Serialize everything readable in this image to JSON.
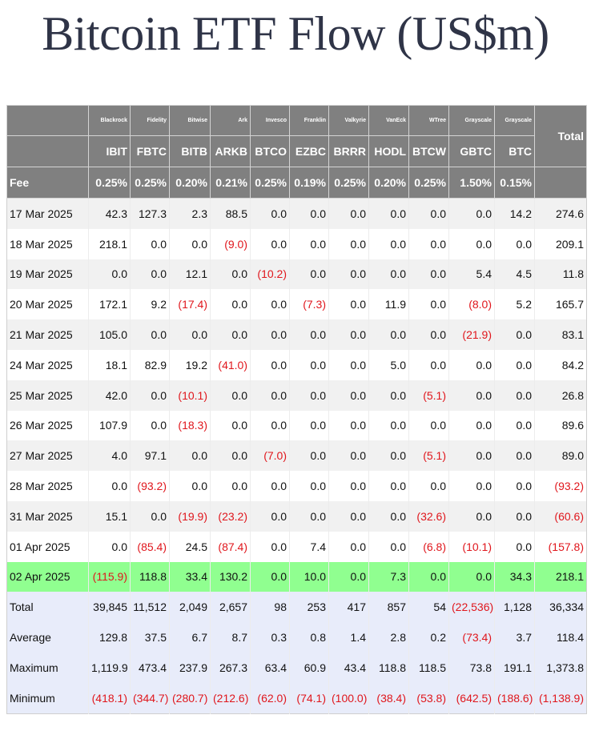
{
  "title": "Bitcoin ETF Flow (US$m)",
  "header": {
    "issuers": [
      "Blackrock",
      "Fidelity",
      "Bitwise",
      "Ark",
      "Invesco",
      "Franklin",
      "Valkyrie",
      "VanEck",
      "WTree",
      "Grayscale",
      "Grayscale"
    ],
    "tickers": [
      "IBIT",
      "FBTC",
      "BITB",
      "ARKB",
      "BTCO",
      "EZBC",
      "BRRR",
      "HODL",
      "BTCW",
      "GBTC",
      "BTC"
    ],
    "fee_label": "Fee",
    "fees": [
      "0.25%",
      "0.25%",
      "0.20%",
      "0.21%",
      "0.25%",
      "0.19%",
      "0.25%",
      "0.20%",
      "0.25%",
      "1.50%",
      "0.15%"
    ],
    "total_label": "Total"
  },
  "rows": [
    {
      "date": "17 Mar 2025",
      "values": [
        "42.3",
        "127.3",
        "2.3",
        "88.5",
        "0.0",
        "0.0",
        "0.0",
        "0.0",
        "0.0",
        "0.0",
        "14.2"
      ],
      "total": "274.6"
    },
    {
      "date": "18 Mar 2025",
      "values": [
        "218.1",
        "0.0",
        "0.0",
        "(9.0)",
        "0.0",
        "0.0",
        "0.0",
        "0.0",
        "0.0",
        "0.0",
        "0.0"
      ],
      "total": "209.1"
    },
    {
      "date": "19 Mar 2025",
      "values": [
        "0.0",
        "0.0",
        "12.1",
        "0.0",
        "(10.2)",
        "0.0",
        "0.0",
        "0.0",
        "0.0",
        "5.4",
        "4.5"
      ],
      "total": "11.8"
    },
    {
      "date": "20 Mar 2025",
      "values": [
        "172.1",
        "9.2",
        "(17.4)",
        "0.0",
        "0.0",
        "(7.3)",
        "0.0",
        "11.9",
        "0.0",
        "(8.0)",
        "5.2"
      ],
      "total": "165.7"
    },
    {
      "date": "21 Mar 2025",
      "values": [
        "105.0",
        "0.0",
        "0.0",
        "0.0",
        "0.0",
        "0.0",
        "0.0",
        "0.0",
        "0.0",
        "(21.9)",
        "0.0"
      ],
      "total": "83.1"
    },
    {
      "date": "24 Mar 2025",
      "values": [
        "18.1",
        "82.9",
        "19.2",
        "(41.0)",
        "0.0",
        "0.0",
        "0.0",
        "5.0",
        "0.0",
        "0.0",
        "0.0"
      ],
      "total": "84.2"
    },
    {
      "date": "25 Mar 2025",
      "values": [
        "42.0",
        "0.0",
        "(10.1)",
        "0.0",
        "0.0",
        "0.0",
        "0.0",
        "0.0",
        "(5.1)",
        "0.0",
        "0.0"
      ],
      "total": "26.8"
    },
    {
      "date": "26 Mar 2025",
      "values": [
        "107.9",
        "0.0",
        "(18.3)",
        "0.0",
        "0.0",
        "0.0",
        "0.0",
        "0.0",
        "0.0",
        "0.0",
        "0.0"
      ],
      "total": "89.6"
    },
    {
      "date": "27 Mar 2025",
      "values": [
        "4.0",
        "97.1",
        "0.0",
        "0.0",
        "(7.0)",
        "0.0",
        "0.0",
        "0.0",
        "(5.1)",
        "0.0",
        "0.0"
      ],
      "total": "89.0"
    },
    {
      "date": "28 Mar 2025",
      "values": [
        "0.0",
        "(93.2)",
        "0.0",
        "0.0",
        "0.0",
        "0.0",
        "0.0",
        "0.0",
        "0.0",
        "0.0",
        "0.0"
      ],
      "total": "(93.2)"
    },
    {
      "date": "31 Mar 2025",
      "values": [
        "15.1",
        "0.0",
        "(19.9)",
        "(23.2)",
        "0.0",
        "0.0",
        "0.0",
        "0.0",
        "(32.6)",
        "0.0",
        "0.0"
      ],
      "total": "(60.6)"
    },
    {
      "date": "01 Apr 2025",
      "values": [
        "0.0",
        "(85.4)",
        "24.5",
        "(87.4)",
        "0.0",
        "7.4",
        "0.0",
        "0.0",
        "(6.8)",
        "(10.1)",
        "0.0"
      ],
      "total": "(157.8)"
    },
    {
      "date": "02 Apr 2025",
      "values": [
        "(115.9)",
        "118.8",
        "33.4",
        "130.2",
        "0.0",
        "10.0",
        "0.0",
        "7.3",
        "0.0",
        "0.0",
        "34.3"
      ],
      "total": "218.1",
      "highlight": true
    }
  ],
  "stats": [
    {
      "label": "Total",
      "values": [
        "39,845",
        "11,512",
        "2,049",
        "2,657",
        "98",
        "253",
        "417",
        "857",
        "54",
        "(22,536)",
        "1,128"
      ],
      "total": "36,334"
    },
    {
      "label": "Average",
      "values": [
        "129.8",
        "37.5",
        "6.7",
        "8.7",
        "0.3",
        "0.8",
        "1.4",
        "2.8",
        "0.2",
        "(73.4)",
        "3.7"
      ],
      "total": "118.4"
    },
    {
      "label": "Maximum",
      "values": [
        "1,119.9",
        "473.4",
        "237.9",
        "267.3",
        "63.4",
        "60.9",
        "43.4",
        "118.8",
        "118.5",
        "73.8",
        "191.1"
      ],
      "total": "1,373.8"
    },
    {
      "label": "Minimum",
      "values": [
        "(418.1)",
        "(344.7)",
        "(280.7)",
        "(212.6)",
        "(62.0)",
        "(74.1)",
        "(100.0)",
        "(38.4)",
        "(53.8)",
        "(642.5)",
        "(188.6)"
      ],
      "total": "(1,138.9)"
    }
  ],
  "colors": {
    "header_bg": "#808080",
    "negative": "#e0161c",
    "highlight_row": "#90ff90",
    "stats_bg": "#e8ecfa"
  }
}
